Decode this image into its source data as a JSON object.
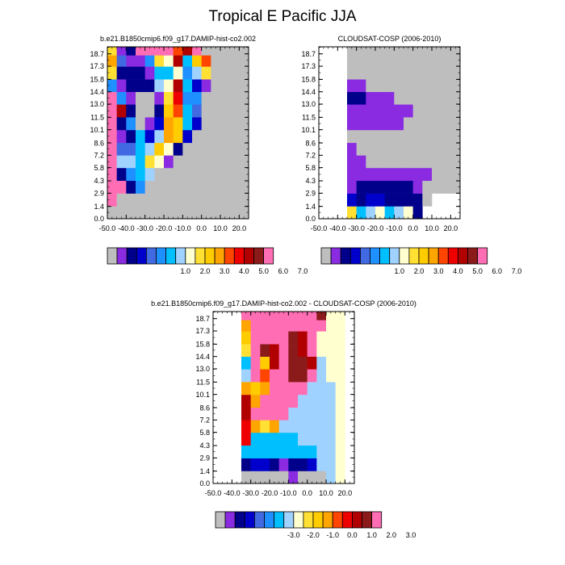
{
  "figure": {
    "title": "Tropical E Pacific JJA"
  },
  "chart_data": [
    {
      "type": "heatmap",
      "title": "b.e21.B1850cmip6.f09_g17.DAMIP-hist-co2.002",
      "xlabel": "",
      "ylabel": "",
      "x_ticks": [
        "-50.0",
        "-40.0",
        "-30.0",
        "-20.0",
        "-10.0",
        "0.0",
        "10.0",
        "20.0"
      ],
      "y_ticks": [
        "0.0",
        "1.4",
        "2.9",
        "4.3",
        "5.8",
        "7.2",
        "8.6",
        "10.1",
        "11.5",
        "13.0",
        "14.4",
        "15.8",
        "17.3",
        "18.7"
      ],
      "xlim": [
        -50,
        25
      ],
      "ylim": [
        0,
        19.5
      ],
      "x_cols": [
        -47.5,
        -42.5,
        -37.5,
        -32.5,
        -27.5,
        -22.5,
        -17.5,
        -12.5,
        -7.5,
        -2.5,
        2.5,
        7.5,
        12.5,
        17.5,
        22.5
      ],
      "y_rows": [
        0.7,
        2.15,
        3.6,
        5.05,
        6.5,
        7.9,
        9.35,
        10.8,
        12.25,
        13.7,
        15.1,
        16.55,
        18.0,
        19.1
      ],
      "colorbar": {
        "colors": [
          "#bebebe",
          "#8a2be2",
          "#00008b",
          "#0000cd",
          "#4169e1",
          "#1e90ff",
          "#00bfff",
          "#a0d2ff",
          "#ffffd0",
          "#ffe033",
          "#ffcc00",
          "#ffa500",
          "#ff4500",
          "#ee0000",
          "#b00000",
          "#8b1a1a",
          "#ff6eb4"
        ],
        "labels": [
          "1.0",
          "2.0",
          "3.0",
          "4.0",
          "5.0",
          "6.0",
          "7.0"
        ]
      },
      "grid": [
        [
          0,
          0,
          0,
          0,
          0,
          0,
          0,
          0,
          0,
          0,
          0,
          0,
          0,
          0,
          0
        ],
        [
          16,
          0,
          0,
          0,
          0,
          0,
          0,
          0,
          0,
          0,
          0,
          0,
          0,
          0,
          0
        ],
        [
          16,
          16,
          2,
          5,
          0,
          0,
          0,
          0,
          0,
          0,
          0,
          0,
          0,
          0,
          0
        ],
        [
          16,
          2,
          5,
          6,
          7,
          0,
          0,
          0,
          0,
          0,
          0,
          0,
          0,
          0,
          0
        ],
        [
          16,
          7,
          7,
          6,
          9,
          8,
          1,
          0,
          0,
          0,
          0,
          0,
          0,
          0,
          0
        ],
        [
          16,
          4,
          4,
          6,
          7,
          10,
          8,
          2,
          0,
          0,
          0,
          0,
          0,
          0,
          0
        ],
        [
          16,
          1,
          2,
          6,
          3,
          7,
          11,
          10,
          3,
          0,
          0,
          0,
          0,
          0,
          0
        ],
        [
          16,
          2,
          5,
          0,
          1,
          3,
          11,
          10,
          6,
          3,
          0,
          0,
          0,
          0,
          0
        ],
        [
          16,
          14,
          2,
          0,
          0,
          2,
          10,
          12,
          6,
          4,
          0,
          0,
          0,
          0,
          0
        ],
        [
          16,
          5,
          1,
          0,
          0,
          1,
          9,
          13,
          5,
          5,
          0,
          0,
          0,
          0,
          0
        ],
        [
          5,
          1,
          2,
          2,
          2,
          7,
          8,
          14,
          6,
          3,
          1,
          0,
          0,
          0,
          0
        ],
        [
          9,
          2,
          2,
          2,
          1,
          6,
          6,
          8,
          5,
          7,
          9,
          0,
          0,
          0,
          0
        ],
        [
          11,
          4,
          1,
          1,
          5,
          9,
          8,
          14,
          6,
          10,
          12,
          0,
          0,
          0,
          0
        ],
        [
          9,
          1,
          2,
          16,
          16,
          16,
          16,
          12,
          14,
          16,
          0,
          0,
          0,
          0,
          0
        ]
      ]
    },
    {
      "type": "heatmap",
      "title": "CLOUDSAT-COSP (2006-2010)",
      "xlabel": "",
      "ylabel": "",
      "x_ticks": [
        "-50.0",
        "-40.0",
        "-30.0",
        "-20.0",
        "-10.0",
        "0.0",
        "10.0",
        "20.0"
      ],
      "y_ticks": [
        "0.0",
        "1.4",
        "2.9",
        "4.3",
        "5.8",
        "7.2",
        "8.6",
        "10.1",
        "11.5",
        "13.0",
        "14.4",
        "15.8",
        "17.3",
        "18.7"
      ],
      "xlim": [
        -50,
        25
      ],
      "ylim": [
        0,
        19.5
      ],
      "x_cols": [
        -47.5,
        -42.5,
        -37.5,
        -32.5,
        -27.5,
        -22.5,
        -17.5,
        -12.5,
        -7.5,
        -2.5,
        2.5,
        7.5,
        12.5,
        17.5,
        22.5
      ],
      "y_rows": [
        0.7,
        2.15,
        3.6,
        5.05,
        6.5,
        7.9,
        9.35,
        10.8,
        12.25,
        13.7,
        15.1,
        16.55,
        18.0,
        19.1
      ],
      "colorbar": {
        "colors": [
          "#bebebe",
          "#8a2be2",
          "#00008b",
          "#0000cd",
          "#4169e1",
          "#1e90ff",
          "#00bfff",
          "#a0d2ff",
          "#ffffd0",
          "#ffe033",
          "#ffcc00",
          "#ffa500",
          "#ff4500",
          "#ee0000",
          "#b00000",
          "#8b1a1a",
          "#ff6eb4"
        ],
        "labels": [
          "1.0",
          "2.0",
          "3.0",
          "4.0",
          "5.0",
          "6.0",
          "7.0"
        ]
      },
      "grid": [
        [
          -1,
          -1,
          -1,
          9,
          6,
          7,
          8,
          6,
          7,
          8,
          2,
          -1,
          -1,
          -1,
          -1
        ],
        [
          -1,
          -1,
          -1,
          3,
          2,
          3,
          3,
          2,
          2,
          2,
          2,
          0,
          -1,
          -1,
          -1
        ],
        [
          -1,
          -1,
          -1,
          1,
          2,
          2,
          2,
          2,
          2,
          2,
          1,
          0,
          0,
          0,
          0
        ],
        [
          -1,
          -1,
          -1,
          1,
          1,
          1,
          1,
          1,
          1,
          1,
          1,
          1,
          0,
          0,
          0
        ],
        [
          -1,
          -1,
          -1,
          1,
          1,
          0,
          0,
          0,
          0,
          0,
          0,
          0,
          0,
          0,
          0
        ],
        [
          -1,
          -1,
          -1,
          1,
          0,
          0,
          0,
          0,
          0,
          0,
          0,
          0,
          0,
          0,
          0
        ],
        [
          -1,
          -1,
          -1,
          0,
          0,
          0,
          0,
          0,
          0,
          0,
          0,
          0,
          0,
          0,
          0
        ],
        [
          -1,
          -1,
          -1,
          1,
          1,
          1,
          1,
          1,
          1,
          0,
          0,
          0,
          0,
          0,
          0
        ],
        [
          -1,
          -1,
          -1,
          1,
          1,
          1,
          1,
          1,
          1,
          1,
          0,
          0,
          0,
          0,
          0
        ],
        [
          -1,
          -1,
          -1,
          2,
          2,
          1,
          1,
          1,
          0,
          0,
          0,
          0,
          0,
          0,
          0
        ],
        [
          -1,
          -1,
          -1,
          1,
          1,
          0,
          0,
          0,
          0,
          0,
          0,
          0,
          0,
          0,
          0
        ],
        [
          -1,
          -1,
          -1,
          0,
          0,
          0,
          0,
          0,
          0,
          0,
          0,
          0,
          0,
          0,
          0
        ],
        [
          -1,
          -1,
          -1,
          0,
          0,
          0,
          0,
          0,
          0,
          0,
          0,
          0,
          0,
          0,
          0
        ],
        [
          -1,
          -1,
          -1,
          0,
          0,
          0,
          0,
          0,
          0,
          0,
          0,
          0,
          0,
          0,
          0
        ]
      ]
    },
    {
      "type": "heatmap",
      "title": "b.e21.B1850cmip6.f09_g17.DAMIP-hist-co2.002 - CLOUDSAT-COSP (2006-2010)",
      "xlabel": "",
      "ylabel": "",
      "x_ticks": [
        "-50.0",
        "-40.0",
        "-30.0",
        "-20.0",
        "-10.0",
        "0.0",
        "10.0",
        "20.0"
      ],
      "y_ticks": [
        "0.0",
        "1.4",
        "2.9",
        "4.3",
        "5.8",
        "7.2",
        "8.6",
        "10.1",
        "11.5",
        "13.0",
        "14.4",
        "15.8",
        "17.3",
        "18.7"
      ],
      "xlim": [
        -50,
        25
      ],
      "ylim": [
        0,
        19.5
      ],
      "x_cols": [
        -47.5,
        -42.5,
        -37.5,
        -32.5,
        -27.5,
        -22.5,
        -17.5,
        -12.5,
        -7.5,
        -2.5,
        2.5,
        7.5,
        12.5,
        17.5,
        22.5
      ],
      "y_rows": [
        0.7,
        2.15,
        3.6,
        5.05,
        6.5,
        7.9,
        9.35,
        10.8,
        12.25,
        13.7,
        15.1,
        16.55,
        18.0,
        19.1
      ],
      "colorbar": {
        "colors": [
          "#bebebe",
          "#8a2be2",
          "#00008b",
          "#0000cd",
          "#4169e1",
          "#1e90ff",
          "#00bfff",
          "#a0d2ff",
          "#ffffd0",
          "#ffe033",
          "#ffcc00",
          "#ffa500",
          "#ff4500",
          "#ee0000",
          "#b00000",
          "#8b1a1a",
          "#ff6eb4"
        ],
        "labels": [
          "-3.0",
          "-2.0",
          "-1.0",
          "0.0",
          "1.0",
          "2.0",
          "3.0"
        ]
      },
      "grid": [
        [
          -1,
          -1,
          -1,
          0,
          0,
          0,
          0,
          0,
          1,
          0,
          0,
          0,
          7,
          8,
          -1
        ],
        [
          -1,
          -1,
          -1,
          2,
          3,
          3,
          2,
          1,
          2,
          2,
          3,
          7,
          7,
          8,
          -1
        ],
        [
          -1,
          -1,
          -1,
          6,
          6,
          6,
          6,
          6,
          6,
          6,
          6,
          7,
          7,
          8,
          -1
        ],
        [
          -1,
          -1,
          -1,
          13,
          6,
          6,
          6,
          6,
          6,
          7,
          7,
          7,
          7,
          8,
          -1
        ],
        [
          -1,
          -1,
          -1,
          13,
          11,
          9,
          11,
          7,
          7,
          7,
          7,
          7,
          7,
          8,
          -1
        ],
        [
          -1,
          -1,
          -1,
          14,
          16,
          16,
          16,
          16,
          7,
          7,
          7,
          7,
          7,
          8,
          -1
        ],
        [
          -1,
          -1,
          -1,
          14,
          11,
          16,
          16,
          16,
          16,
          7,
          7,
          7,
          7,
          8,
          -1
        ],
        [
          -1,
          -1,
          -1,
          11,
          10,
          11,
          16,
          16,
          16,
          16,
          7,
          7,
          7,
          8,
          -1
        ],
        [
          -1,
          -1,
          -1,
          7,
          16,
          12,
          16,
          16,
          15,
          15,
          16,
          7,
          8,
          8,
          -1
        ],
        [
          -1,
          -1,
          -1,
          6,
          16,
          10,
          14,
          16,
          15,
          15,
          14,
          7,
          8,
          8,
          -1
        ],
        [
          -1,
          -1,
          -1,
          9,
          16,
          15,
          14,
          16,
          15,
          14,
          16,
          8,
          8,
          8,
          -1
        ],
        [
          -1,
          -1,
          -1,
          10,
          16,
          16,
          16,
          16,
          15,
          14,
          16,
          8,
          8,
          8,
          -1
        ],
        [
          -1,
          -1,
          -1,
          11,
          16,
          16,
          16,
          16,
          16,
          16,
          16,
          16,
          8,
          8,
          -1
        ],
        [
          -1,
          -1,
          -1,
          16,
          16,
          16,
          16,
          16,
          16,
          16,
          16,
          15,
          8,
          8,
          -1
        ]
      ]
    }
  ]
}
